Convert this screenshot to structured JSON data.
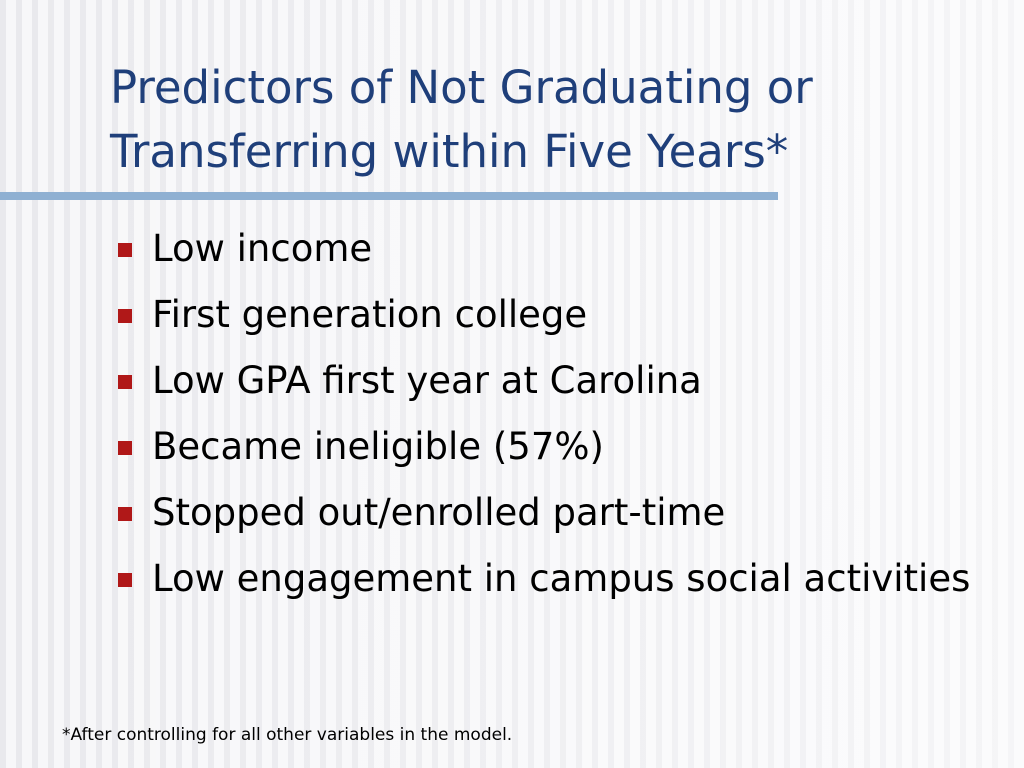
{
  "slide": {
    "title_lines": [
      "Predictors of Not Graduating or",
      "Transferring within Five Years*"
    ],
    "bullets": [
      "Low income",
      "First generation college",
      "Low GPA first year at Carolina",
      "Became ineligible (57%)",
      "Stopped out/enrolled part-time",
      "Low engagement in campus social activities"
    ],
    "footnote": "*After controlling for all other variables in the model."
  },
  "colors": {
    "title": "#1f3f7a",
    "rule": "#8fb0d2",
    "bullet_marker": "#b01818",
    "body_text": "#000000"
  },
  "icons": {
    "bullet_marker": "square-bullet-icon"
  }
}
